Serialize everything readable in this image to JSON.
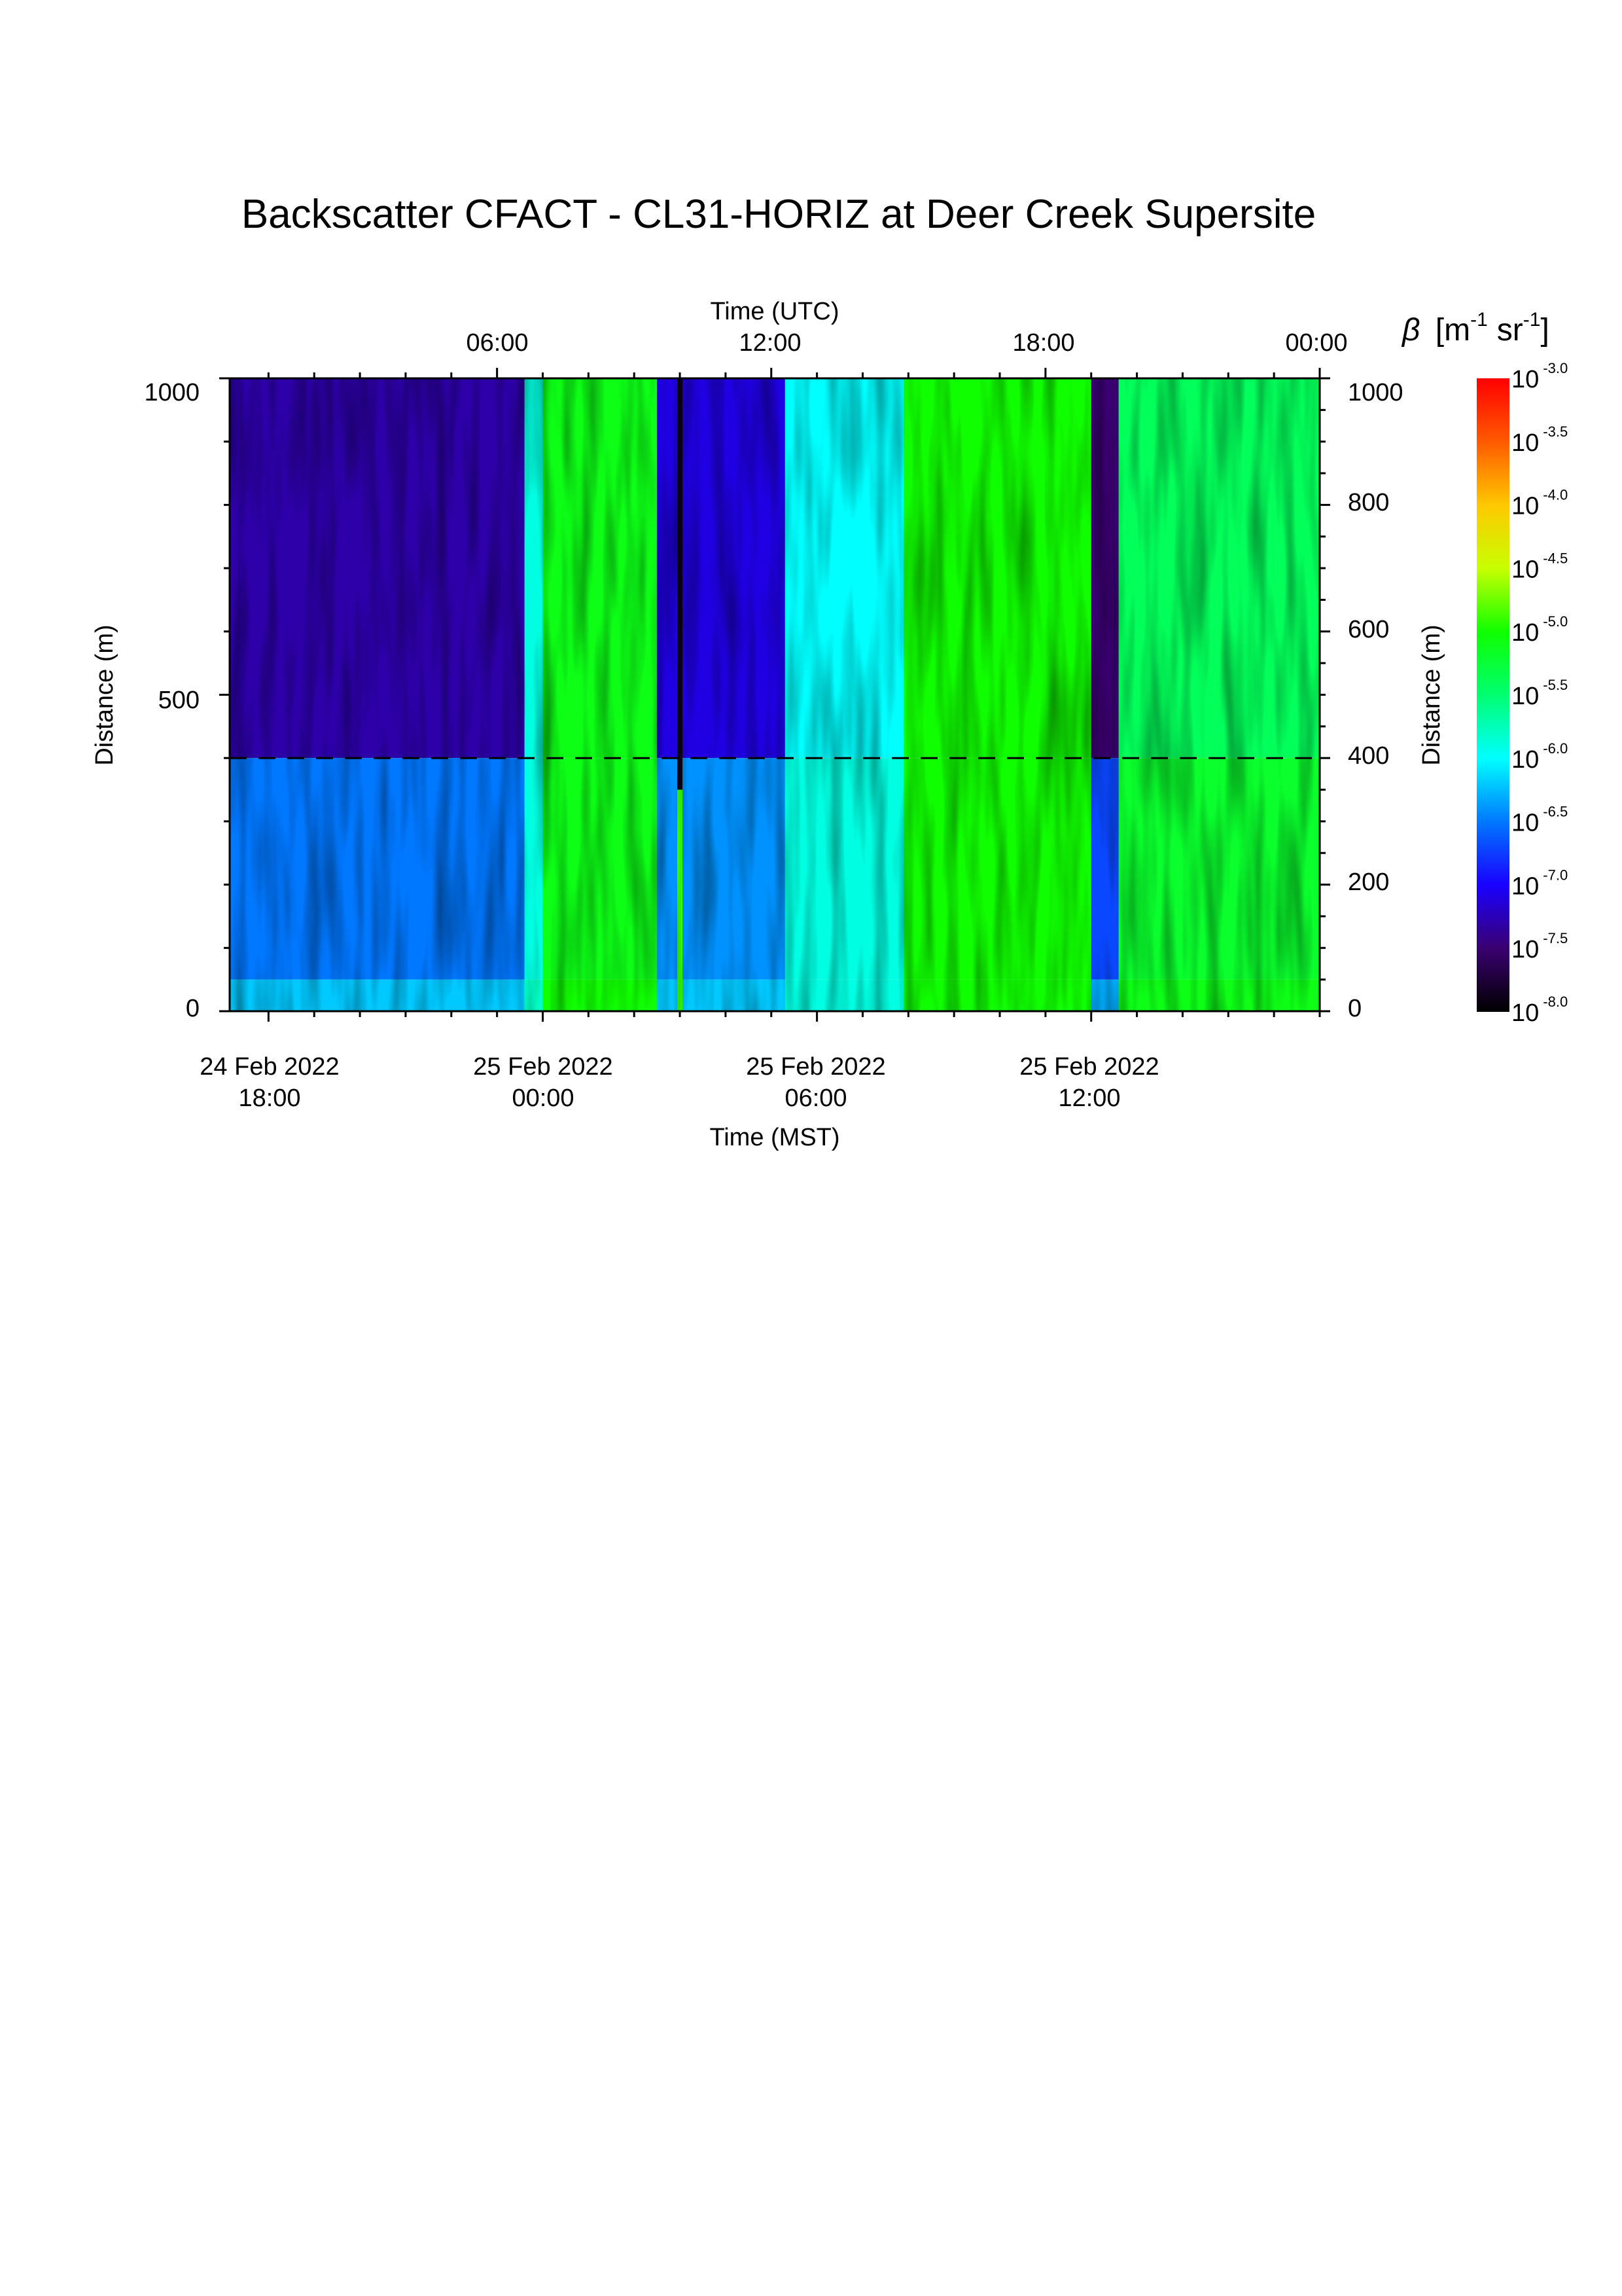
{
  "chart_data": {
    "type": "heatmap",
    "title": "Backscatter CFACT - CL31-HORIZ at Deer Creek Supersite",
    "x_top_label": "Time (UTC)",
    "x_top_ticks": [
      "06:00",
      "12:00",
      "18:00",
      "00:00"
    ],
    "x_top_tick_hours_utc": [
      6,
      12,
      18,
      24
    ],
    "x_bottom_label": "Time (MST)",
    "x_bottom_ticks": [
      {
        "date": "24 Feb 2022",
        "time": "18:00",
        "hour_utc": 1
      },
      {
        "date": "25 Feb 2022",
        "time": "00:00",
        "hour_utc": 7
      },
      {
        "date": "25 Feb 2022",
        "time": "06:00",
        "hour_utc": 13
      },
      {
        "date": "25 Feb 2022",
        "time": "12:00",
        "hour_utc": 19
      }
    ],
    "xlim_hours_utc": [
      0.15,
      24.0
    ],
    "y_left_label": "Distance (m)",
    "y_left_ticks": [
      "0",
      "500",
      "1000"
    ],
    "y_right_label": "Distance (m)",
    "y_right_ticks": [
      "0",
      "200",
      "400",
      "600",
      "800",
      "1000"
    ],
    "ylim": [
      0,
      1000
    ],
    "reference_line_distance_m": 400,
    "colorbar": {
      "label_symbol": "β",
      "label_unit_base": "m",
      "label_unit_exp1": "-1",
      "label_unit_mid": "sr",
      "label_unit_exp2": "-1",
      "tick_base": "10",
      "tick_exponents": [
        "-3.0",
        "-3.5",
        "-4.0",
        "-4.5",
        "-5.0",
        "-5.5",
        "-6.0",
        "-6.5",
        "-7.0",
        "-7.5",
        "-8.0"
      ],
      "log10_range": [
        -8.0,
        -3.0
      ],
      "colormap_stops": [
        {
          "v": 0.0,
          "color": "#000000"
        },
        {
          "v": 0.1,
          "color": "#3a0070"
        },
        {
          "v": 0.2,
          "color": "#1a00ff"
        },
        {
          "v": 0.3,
          "color": "#0078ff"
        },
        {
          "v": 0.4,
          "color": "#00ffff"
        },
        {
          "v": 0.5,
          "color": "#00ff70"
        },
        {
          "v": 0.6,
          "color": "#10ff00"
        },
        {
          "v": 0.7,
          "color": "#c8ff00"
        },
        {
          "v": 0.8,
          "color": "#ffc800"
        },
        {
          "v": 0.9,
          "color": "#ff5a00"
        },
        {
          "v": 1.0,
          "color": "#ff0000"
        }
      ]
    },
    "backscatter_log10_by_period": [
      {
        "start_utc": 0.15,
        "end_utc": 6.6,
        "upper_400_1000": -7.3,
        "lower_0_400": -6.5,
        "surface_0_50": -6.2
      },
      {
        "start_utc": 6.6,
        "end_utc": 7.0,
        "upper_400_1000": -5.9,
        "lower_0_400": -5.9,
        "surface_0_50": -5.8
      },
      {
        "start_utc": 7.0,
        "end_utc": 9.5,
        "upper_400_1000": -5.1,
        "lower_0_400": -5.1,
        "surface_0_50": -5.0
      },
      {
        "start_utc": 9.5,
        "end_utc": 12.3,
        "upper_400_1000": -7.1,
        "lower_0_400": -6.4,
        "surface_0_50": -6.2
      },
      {
        "start_utc": 12.3,
        "end_utc": 14.9,
        "upper_400_1000": -6.0,
        "lower_0_400": -5.9,
        "surface_0_50": -5.9
      },
      {
        "start_utc": 14.9,
        "end_utc": 19.0,
        "upper_400_1000": -5.0,
        "lower_0_400": -5.0,
        "surface_0_50": -5.0
      },
      {
        "start_utc": 19.0,
        "end_utc": 19.6,
        "upper_400_1000": -7.5,
        "lower_0_400": -6.7,
        "surface_0_50": -6.3
      },
      {
        "start_utc": 19.6,
        "end_utc": 24.0,
        "upper_400_1000": -5.4,
        "lower_0_400": -5.2,
        "surface_0_50": -5.1
      }
    ],
    "minor_features": [
      {
        "time_utc": 10.0,
        "log10": -7.9,
        "from_m": 350,
        "to_m": 1000,
        "note": "dark streak"
      },
      {
        "time_utc": 10.0,
        "log10": -4.9,
        "from_m": 0,
        "to_m": 350,
        "note": "bright streak"
      }
    ]
  }
}
